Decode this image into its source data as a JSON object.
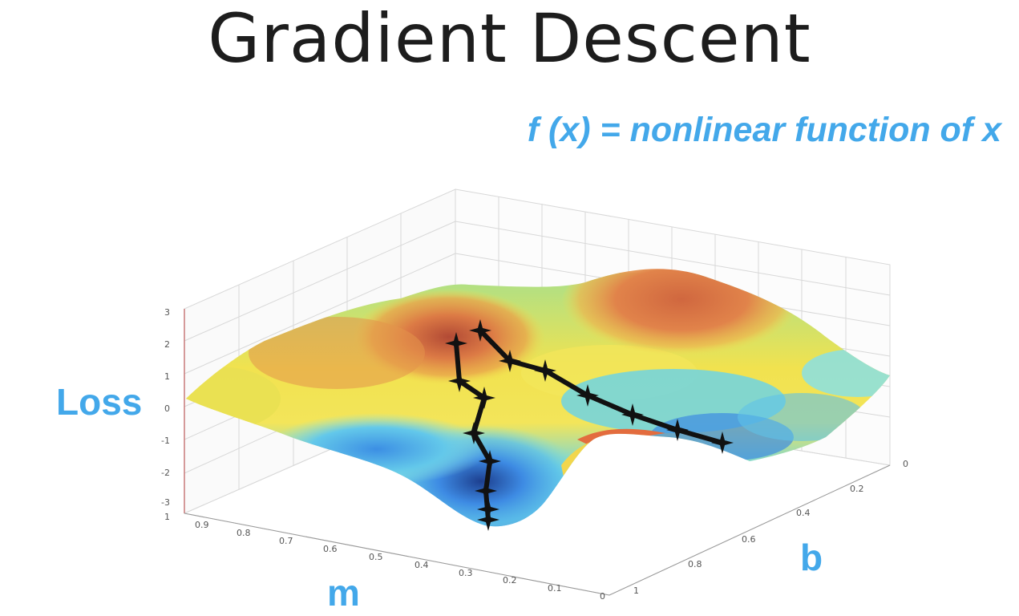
{
  "title": "Gradient Descent",
  "formula": "f (x) = nonlinear function of x",
  "axes": {
    "z_label": "Loss",
    "x_label": "m",
    "y_label": "b",
    "z_ticks": [
      "3",
      "2",
      "1",
      "0",
      "-1",
      "-2",
      "-3"
    ],
    "m_ticks": [
      "1",
      "0.9",
      "0.8",
      "0.7",
      "0.6",
      "0.5",
      "0.4",
      "0.3",
      "0.2",
      "0.1",
      "0"
    ],
    "b_ticks": [
      "0",
      "0.2",
      "0.4",
      "0.6",
      "0.8",
      "1"
    ]
  },
  "colors": {
    "label_blue": "#43a8ea",
    "surface_high": "#d9744a",
    "surface_mid": "#f2e04a",
    "surface_low": "#3f8fe0",
    "path": "#111111"
  }
}
